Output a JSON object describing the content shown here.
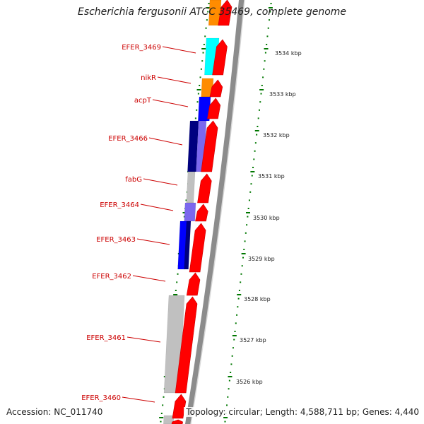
{
  "title": "Escherichia fergusonii ATCC 35469, complete genome",
  "accession": "Accession: NC_011740",
  "topology": "Topology: circular; Length: 4,588,711 bp; Genes: 4,440",
  "colors": {
    "forward_cds": "#ff0000",
    "label": "#cc0000",
    "tick": "#007700",
    "orange": "#ff8c00",
    "cyan": "#00ffff",
    "blue": "#0000ff",
    "navy": "#000080",
    "slate": "#7b68ee",
    "gray": "#c0c0c0",
    "backbone": "#8c8c8c"
  },
  "kbp_labels": [
    {
      "label": "3534 kbp"
    },
    {
      "label": "3533 kbp"
    },
    {
      "label": "3532 kbp"
    },
    {
      "label": "3531 kbp"
    },
    {
      "label": "3530 kbp"
    },
    {
      "label": "3529 kbp"
    },
    {
      "label": "3528 kbp"
    },
    {
      "label": "3527 kbp"
    },
    {
      "label": "3526 kbp"
    }
  ],
  "gene_labels": [
    {
      "label": "EFER_3469"
    },
    {
      "label": "nikR"
    },
    {
      "label": "acpT"
    },
    {
      "label": "EFER_3466"
    },
    {
      "label": "fabG"
    },
    {
      "label": "EFER_3464"
    },
    {
      "label": "EFER_3463"
    },
    {
      "label": "EFER_3462"
    },
    {
      "label": "EFER_3461"
    },
    {
      "label": "EFER_3460"
    }
  ],
  "features": [
    {
      "name": "orange-feature-top",
      "color": "orange"
    },
    {
      "name": "cyan-feature",
      "color": "cyan"
    },
    {
      "name": "orange-feature",
      "color": "orange"
    },
    {
      "name": "blue-feature",
      "color": "blue"
    },
    {
      "name": "navy-feature",
      "color": "navy"
    },
    {
      "name": "slate-feature",
      "color": "slate"
    },
    {
      "name": "gray-feature",
      "color": "gray"
    },
    {
      "name": "slate-feature-2",
      "color": "slate"
    },
    {
      "name": "blue-feature-2",
      "color": "blue"
    },
    {
      "name": "navy-feature-2",
      "color": "navy"
    },
    {
      "name": "gray-feature-2",
      "color": "gray"
    },
    {
      "name": "gray-feature-3",
      "color": "gray"
    }
  ]
}
